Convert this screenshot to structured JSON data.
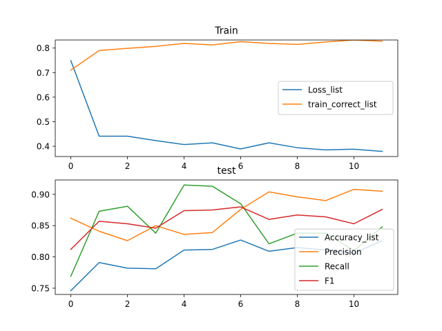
{
  "chart_data": [
    {
      "type": "line",
      "title": "Train",
      "xlabel": "",
      "ylabel": "",
      "x": [
        0,
        1,
        2,
        3,
        4,
        5,
        6,
        7,
        8,
        9,
        10,
        11
      ],
      "xlim": [
        -0.55,
        11.55
      ],
      "ylim": [
        0.358,
        0.833
      ],
      "xticks": [
        0,
        2,
        4,
        6,
        8,
        10
      ],
      "yticks": [
        0.4,
        0.5,
        0.6,
        0.7,
        0.8
      ],
      "grid": false,
      "legend": "center-right",
      "series": [
        {
          "name": "Loss_list",
          "color": "#1f77b4",
          "values": [
            0.749,
            0.441,
            0.441,
            0.423,
            0.407,
            0.414,
            0.389,
            0.414,
            0.394,
            0.385,
            0.388,
            0.379
          ]
        },
        {
          "name": "train_correct_list",
          "color": "#ff7f0e",
          "values": [
            0.71,
            0.79,
            0.799,
            0.807,
            0.819,
            0.813,
            0.826,
            0.819,
            0.815,
            0.825,
            0.833,
            0.828
          ]
        }
      ]
    },
    {
      "type": "line",
      "title": "test",
      "xlabel": "",
      "ylabel": "",
      "x": [
        0,
        1,
        2,
        3,
        4,
        5,
        6,
        7,
        8,
        9,
        10,
        11
      ],
      "xlim": [
        -0.55,
        11.55
      ],
      "ylim": [
        0.74,
        0.923
      ],
      "xticks": [
        0,
        2,
        4,
        6,
        8,
        10
      ],
      "yticks": [
        0.75,
        0.8,
        0.85,
        0.9
      ],
      "ytick_labels": [
        "0.75",
        "0.80",
        "0.85",
        "0.90"
      ],
      "grid": false,
      "legend": "lower-right",
      "series": [
        {
          "name": "Accuracy_list",
          "color": "#1f77b4",
          "values": [
            0.746,
            0.791,
            0.782,
            0.781,
            0.811,
            0.812,
            0.827,
            0.809,
            0.815,
            0.811,
            0.806,
            0.826
          ]
        },
        {
          "name": "Precision",
          "color": "#ff7f0e",
          "values": [
            0.862,
            0.841,
            0.826,
            0.85,
            0.836,
            0.839,
            0.876,
            0.904,
            0.896,
            0.89,
            0.908,
            0.905
          ]
        },
        {
          "name": "Recall",
          "color": "#2ca02c",
          "values": [
            0.769,
            0.873,
            0.881,
            0.838,
            0.915,
            0.913,
            0.885,
            0.821,
            0.838,
            0.838,
            0.81,
            0.848
          ]
        },
        {
          "name": "F1",
          "color": "#d62728",
          "values": [
            0.812,
            0.857,
            0.853,
            0.846,
            0.874,
            0.875,
            0.88,
            0.86,
            0.867,
            0.864,
            0.853,
            0.876
          ]
        }
      ]
    }
  ]
}
